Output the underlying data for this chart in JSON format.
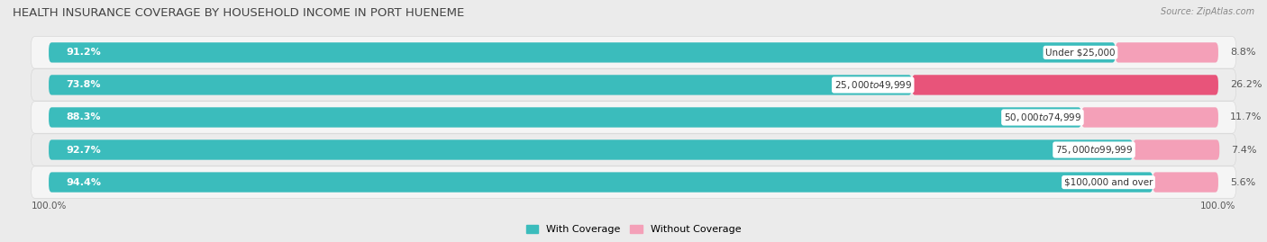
{
  "title": "HEALTH INSURANCE COVERAGE BY HOUSEHOLD INCOME IN PORT HUENEME",
  "source": "Source: ZipAtlas.com",
  "categories": [
    "Under $25,000",
    "$25,000 to $49,999",
    "$50,000 to $74,999",
    "$75,000 to $99,999",
    "$100,000 and over"
  ],
  "with_coverage": [
    91.2,
    73.8,
    88.3,
    92.7,
    94.4
  ],
  "without_coverage": [
    8.8,
    26.2,
    11.7,
    7.4,
    5.6
  ],
  "color_coverage": "#3bbcbc",
  "color_without_0": "#f4a0b8",
  "color_without_1": "#e8547a",
  "color_without_2": "#f4a0b8",
  "color_without_3": "#f4a0b8",
  "color_without_4": "#f4a0b8",
  "bar_height": 0.62,
  "bg_color": "#ebebeb",
  "row_colors": [
    "#f5f5f5",
    "#ececec",
    "#f5f5f5",
    "#ececec",
    "#f5f5f5"
  ],
  "title_fontsize": 9.5,
  "label_fontsize": 8,
  "tick_fontsize": 7.5,
  "legend_fontsize": 8,
  "x_left_label": "100.0%",
  "x_right_label": "100.0%",
  "cov_label_color": "white",
  "without_label_color": "#555555",
  "cat_label_fontsize": 7.5
}
